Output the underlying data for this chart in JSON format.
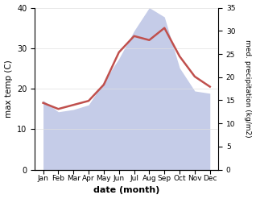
{
  "months": [
    "Jan",
    "Feb",
    "Mar",
    "Apr",
    "May",
    "Jun",
    "Jul",
    "Aug",
    "Sep",
    "Oct",
    "Nov",
    "Dec"
  ],
  "temperature": [
    16.5,
    15.0,
    16.0,
    17.0,
    21.0,
    29.0,
    33.0,
    32.0,
    35.0,
    28.0,
    23.0,
    20.5
  ],
  "precipitation": [
    15.0,
    12.5,
    13.0,
    14.0,
    19.0,
    24.0,
    30.0,
    35.0,
    33.0,
    22.0,
    17.0,
    16.5
  ],
  "temp_color": "#c0504d",
  "precip_fill_color": "#c5cce8",
  "ylabel_left": "max temp (C)",
  "ylabel_right": "med. precipitation (kg/m2)",
  "xlabel": "date (month)",
  "ylim_left": [
    0,
    40
  ],
  "ylim_right": [
    0,
    35
  ],
  "yticks_left": [
    0,
    10,
    20,
    30,
    40
  ],
  "yticks_right": [
    0,
    5,
    10,
    15,
    20,
    25,
    30,
    35
  ],
  "background_color": "#ffffff",
  "line_width": 1.8
}
